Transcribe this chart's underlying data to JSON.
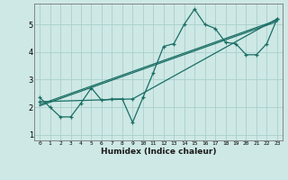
{
  "title": "",
  "xlabel": "Humidex (Indice chaleur)",
  "background_color": "#cde8e5",
  "grid_color": "#aacfcc",
  "line_color": "#1a6e65",
  "xlim": [
    -0.5,
    23.5
  ],
  "ylim": [
    0.8,
    5.75
  ],
  "yticks": [
    1,
    2,
    3,
    4,
    5
  ],
  "xticks": [
    0,
    1,
    2,
    3,
    4,
    5,
    6,
    7,
    8,
    9,
    10,
    11,
    12,
    13,
    14,
    15,
    16,
    17,
    18,
    19,
    20,
    21,
    22,
    23
  ],
  "series1_x": [
    0,
    1,
    2,
    3,
    4,
    5,
    6,
    7,
    8,
    9,
    10,
    11,
    12,
    13,
    14,
    15,
    16,
    17,
    18,
    19,
    20,
    21,
    22,
    23
  ],
  "series1_y": [
    2.35,
    2.0,
    1.65,
    1.65,
    2.15,
    2.7,
    2.25,
    2.3,
    2.3,
    1.45,
    2.35,
    3.25,
    4.2,
    4.3,
    5.0,
    5.55,
    5.0,
    4.85,
    4.35,
    4.3,
    3.9,
    3.9,
    4.3,
    5.2
  ],
  "series2_x": [
    0,
    9,
    23
  ],
  "series2_y": [
    2.2,
    2.3,
    5.2
  ],
  "series3_x": [
    0,
    23
  ],
  "series3_y": [
    2.1,
    5.15
  ],
  "series4_x": [
    0,
    23
  ],
  "series4_y": [
    2.05,
    5.1
  ]
}
